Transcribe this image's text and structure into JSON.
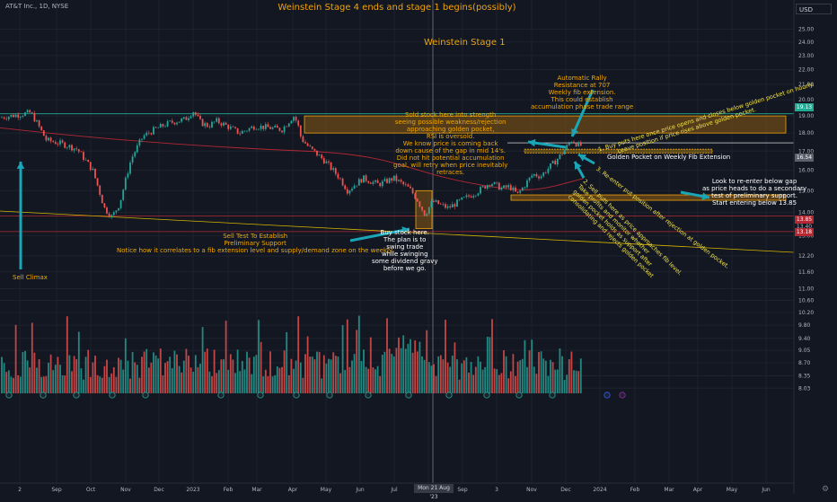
{
  "header": {
    "symbol": "AT&T Inc., 1D, NYSE",
    "currency": "USD"
  },
  "title": "Weinstein Stage 4 ends and stage 1 begins(possibly)",
  "stage1_label": "Weinstein Stage 1",
  "annotations": {
    "sell_climax": "Sell Climax",
    "sell_test": [
      "Sell Test To Establish",
      "Preliminary Support",
      "Notice how it correlates to a fib extension level and supply/demand zone on the weekly."
    ],
    "buy_here": [
      "Buy stock here.",
      "The plan is to",
      "swing trade",
      "while swinging",
      "some dividend gravy",
      "before we go."
    ],
    "sold_here": [
      "Sold stock here into strength",
      "seeing possible weakness/rejection",
      "approaching golden pocket,",
      "RSI is oversold.",
      "We know price is coming back",
      "down cause of the gap in mid 14's.",
      "Did not hit potential accumulation",
      "goal, will retry when price inevitably",
      "retraces."
    ],
    "auto_rally": [
      "Automatic Rally",
      "Resistance at 707",
      "Weekly fib extension.",
      "This could establish",
      "accumulation phase trade range"
    ],
    "golden_pocket": "Golden Pocket on Weekly Fib Extension",
    "reenter": [
      "Look to re-enter below gap",
      "as price heads to do a secondary",
      "test of preliminary support.",
      "Start entering below 13.85"
    ],
    "step1": [
      "1. Buy puts here once price opens and closes below golden pocket on hourly.",
      "Leave position if price rises above golden pocket."
    ],
    "step2": [
      "2. Sell puts here as price approaches fib level.",
      "Take profits and monitor whether",
      "golden pocket holds as support after"
    ],
    "step2b": "consolidating and rejects golden pocket",
    "step3": [
      "3. Re-enter put position after rejection at golden pocket."
    ]
  },
  "price_tags": [
    {
      "label": "19.13",
      "value": 19.13,
      "color": "#22ab94"
    },
    {
      "label": "16.54",
      "value": 16.54,
      "color": "#5d606b"
    },
    {
      "label": "13.85",
      "value": 13.85,
      "color": "#b22833"
    },
    {
      "label": "13.40",
      "value": 13.4,
      "color": "#131722"
    },
    {
      "label": "13.18",
      "value": 13.18,
      "color": "#b22833"
    }
  ],
  "crosshair_label": "Mon 21 Aug '23",
  "chart_data": {
    "type": "candlestick",
    "y_scale": "log",
    "ylim": [
      7.9,
      26.5
    ],
    "y_ticks": [
      "25.00",
      "24.00",
      "23.00",
      "22.00",
      "21.00",
      "20.00",
      "19.00",
      "18.00",
      "17.00",
      "16.00",
      "15.00",
      "14.00",
      "13.00",
      "12.20",
      "11.60",
      "11.00",
      "10.60",
      "10.20",
      "9.80",
      "9.40",
      "9.05",
      "8.70",
      "8.35",
      "8.03"
    ],
    "x_ticks": [
      "2",
      "Sep",
      "Oct",
      "Nov",
      "Dec",
      "2023",
      "Feb",
      "Mar",
      "Apr",
      "May",
      "Jun",
      "Jul",
      "Aug",
      "Sep",
      "3",
      "Nov",
      "Dec",
      "2024",
      "Feb",
      "Mar",
      "Apr",
      "May",
      "Jun"
    ],
    "price_path": [
      [
        0,
        18.9
      ],
      [
        4,
        19.2
      ],
      [
        6,
        17.6
      ],
      [
        8,
        17.4
      ],
      [
        10,
        17.1
      ],
      [
        12,
        16.0
      ],
      [
        13.5,
        14.2
      ],
      [
        14.5,
        13.8
      ],
      [
        15.5,
        14.4
      ],
      [
        17,
        16.6
      ],
      [
        18.5,
        17.8
      ],
      [
        20,
        18.2
      ],
      [
        22,
        18.6
      ],
      [
        24,
        18.8
      ],
      [
        25,
        19.3
      ],
      [
        26,
        18.6
      ],
      [
        27,
        18.4
      ],
      [
        28,
        18.7
      ],
      [
        29,
        18.5
      ],
      [
        31,
        18.0
      ],
      [
        33,
        18.4
      ],
      [
        35,
        18.3
      ],
      [
        36.5,
        18.2
      ],
      [
        38,
        19.0
      ],
      [
        38.5,
        18.6
      ],
      [
        39,
        17.7
      ],
      [
        40,
        17.2
      ],
      [
        42,
        16.5
      ],
      [
        44,
        15.6
      ],
      [
        45,
        15.0
      ],
      [
        47,
        15.6
      ],
      [
        49,
        15.3
      ],
      [
        51,
        15.6
      ],
      [
        53,
        15.1
      ],
      [
        54,
        14.6
      ],
      [
        55,
        13.9
      ],
      [
        56,
        14.5
      ],
      [
        58,
        14.2
      ],
      [
        60,
        14.6
      ],
      [
        62,
        15.0
      ],
      [
        63.5,
        15.4
      ],
      [
        65,
        15.1
      ],
      [
        66,
        15.2
      ],
      [
        67,
        14.8
      ],
      [
        68,
        15.3
      ],
      [
        69,
        15.8
      ],
      [
        70,
        15.7
      ],
      [
        71,
        16.1
      ],
      [
        72,
        16.5
      ],
      [
        73,
        17.0
      ],
      [
        74,
        17.6
      ],
      [
        75,
        17.3
      ]
    ],
    "gaps": [
      [
        1.6,
        2.0
      ],
      [
        1.6,
        2.0
      ]
    ],
    "volume_note": "volume histogram along bottom"
  }
}
